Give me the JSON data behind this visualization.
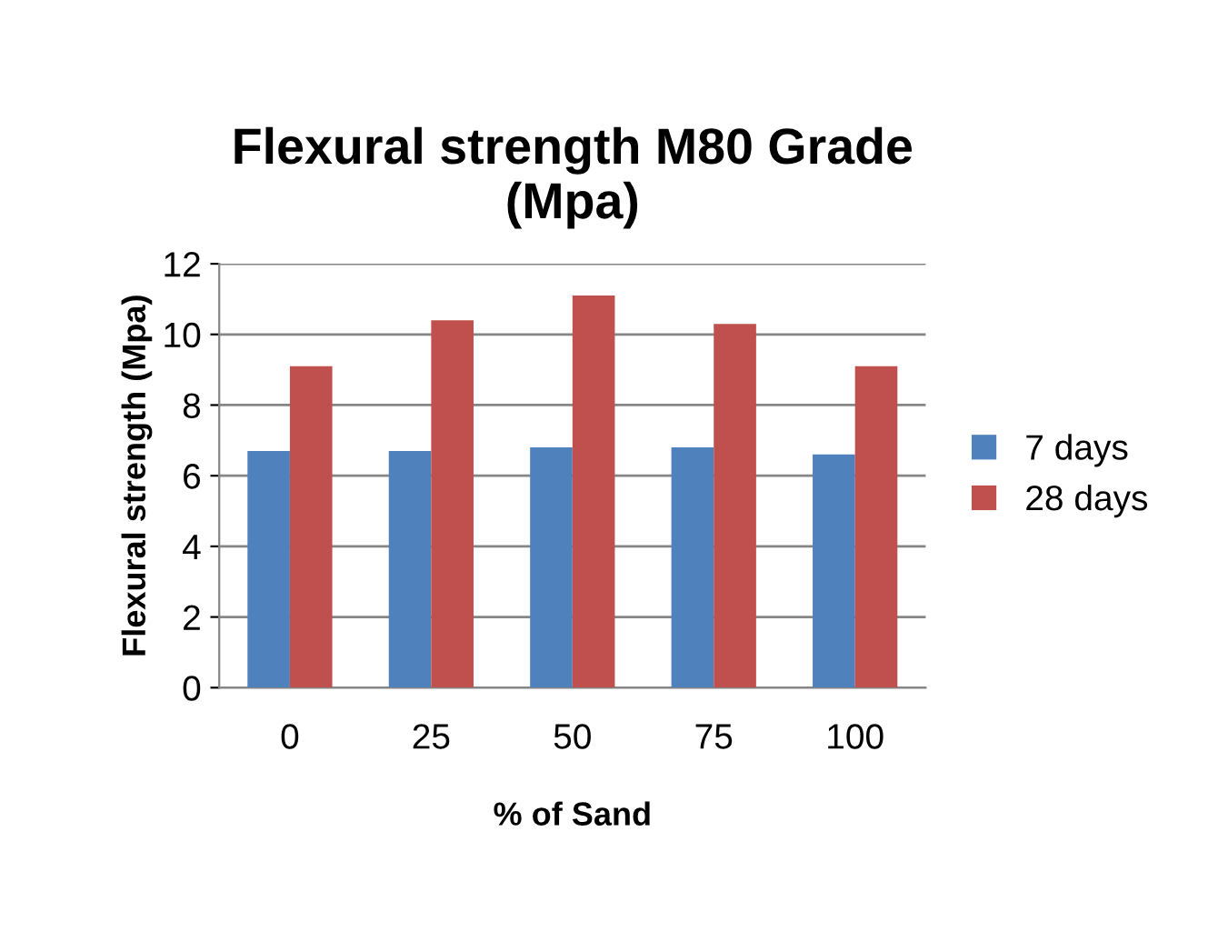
{
  "chart_data": {
    "type": "bar",
    "title": "Flexural strength M80 Grade\n(Mpa)",
    "xlabel": "% of Sand",
    "ylabel": "Flexural strength (Mpa)",
    "categories": [
      "0",
      "25",
      "50",
      "75",
      "100"
    ],
    "series": [
      {
        "name": "7 days",
        "color": "#4f81bd",
        "values": [
          6.7,
          6.7,
          6.8,
          6.8,
          6.6
        ]
      },
      {
        "name": "28 days",
        "color": "#c0504d",
        "values": [
          9.1,
          10.4,
          11.1,
          10.3,
          9.1
        ]
      }
    ],
    "ylim": [
      0,
      12
    ],
    "yticks": [
      0,
      2,
      4,
      6,
      8,
      10,
      12
    ],
    "grid": "y",
    "legend": "right"
  }
}
